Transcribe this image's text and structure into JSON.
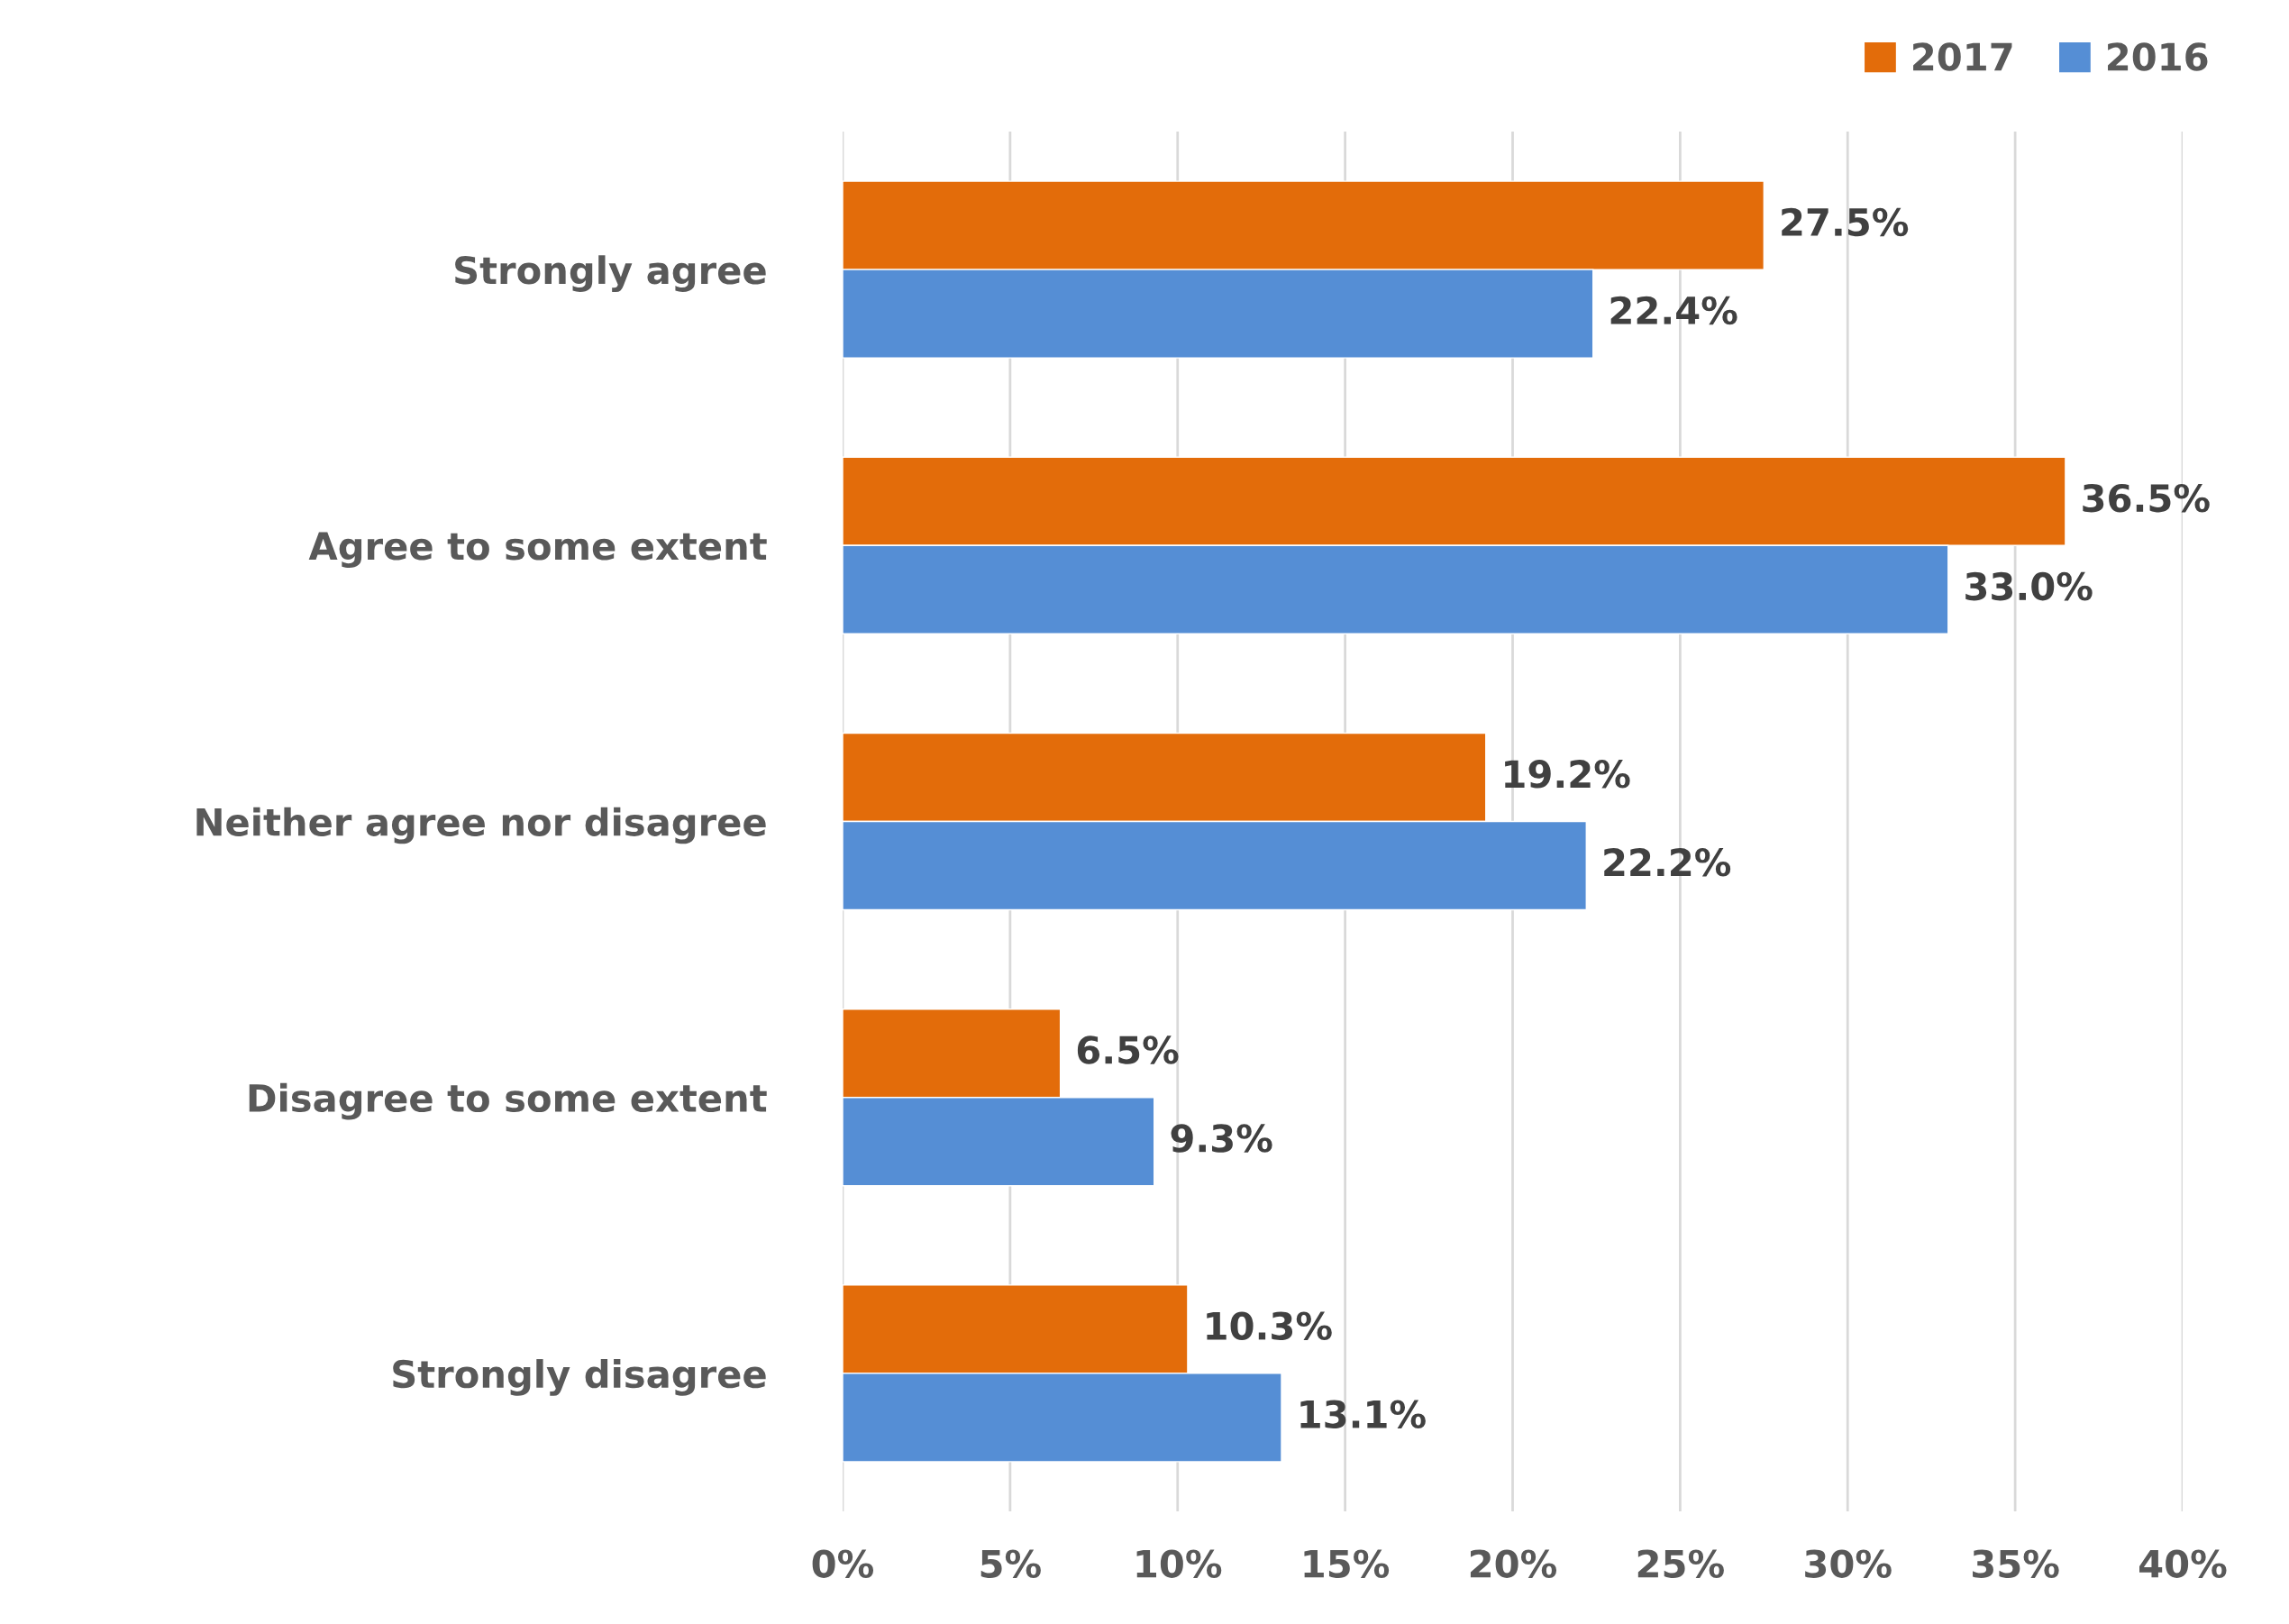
{
  "chart_data": {
    "type": "bar",
    "orientation": "horizontal",
    "categories": [
      "Strongly agree",
      "Agree to some extent",
      "Neither agree nor disagree",
      "Disagree to some extent",
      "Strongly disagree"
    ],
    "series": [
      {
        "name": "2017",
        "color": "#e36c0a",
        "values": [
          27.5,
          36.5,
          19.2,
          6.5,
          10.3
        ],
        "value_labels": [
          "27.5%",
          "36.5%",
          "19.2%",
          "6.5%",
          "10.3%"
        ]
      },
      {
        "name": "2016",
        "color": "#558ed5",
        "values": [
          22.4,
          33.0,
          22.2,
          9.3,
          13.1
        ],
        "value_labels": [
          "22.4%",
          "33.0%",
          "22.2%",
          "9.3%",
          "13.1%"
        ]
      }
    ],
    "xlim": [
      0,
      40
    ],
    "xticks": [
      {
        "value": 0,
        "label": "0%"
      },
      {
        "value": 5,
        "label": "5%"
      },
      {
        "value": 10,
        "label": "10%"
      },
      {
        "value": 15,
        "label": "15%"
      },
      {
        "value": 20,
        "label": "20%"
      },
      {
        "value": 25,
        "label": "25%"
      },
      {
        "value": 30,
        "label": "30%"
      },
      {
        "value": 35,
        "label": "35%"
      },
      {
        "value": 40,
        "label": "40%"
      }
    ],
    "grid": "x",
    "legend": "top right"
  }
}
